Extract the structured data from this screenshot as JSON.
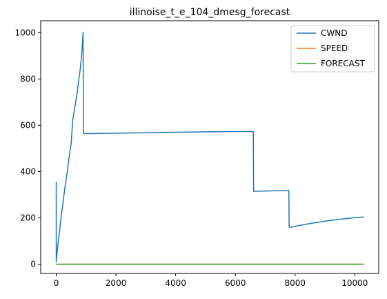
{
  "chart_data": {
    "type": "line",
    "title": "illinoise_t_e_104_dmesg_forecast",
    "xlabel": "",
    "ylabel": "",
    "xlim": [
      -520,
      10800
    ],
    "ylim": [
      -40,
      1052
    ],
    "x_ticks": [
      0,
      2000,
      4000,
      6000,
      8000,
      10000
    ],
    "y_ticks": [
      0,
      200,
      400,
      600,
      800,
      1000
    ],
    "grid": false,
    "legend_position": "upper right",
    "series": [
      {
        "name": "CWND",
        "color": "#1f77b4",
        "points": [
          [
            0,
            355
          ],
          [
            0,
            10
          ],
          [
            50,
            80
          ],
          [
            100,
            130
          ],
          [
            150,
            190
          ],
          [
            200,
            240
          ],
          [
            250,
            290
          ],
          [
            300,
            340
          ],
          [
            350,
            380
          ],
          [
            400,
            430
          ],
          [
            450,
            480
          ],
          [
            500,
            520
          ],
          [
            550,
            620
          ],
          [
            600,
            660
          ],
          [
            650,
            700
          ],
          [
            700,
            740
          ],
          [
            750,
            790
          ],
          [
            800,
            840
          ],
          [
            850,
            900
          ],
          [
            900,
            1002
          ],
          [
            910,
            564
          ],
          [
            1000,
            564
          ],
          [
            1500,
            565
          ],
          [
            2000,
            566
          ],
          [
            3000,
            568
          ],
          [
            4000,
            570
          ],
          [
            5000,
            572
          ],
          [
            6000,
            573
          ],
          [
            6600,
            573
          ],
          [
            6610,
            315
          ],
          [
            7000,
            316
          ],
          [
            7500,
            318
          ],
          [
            7790,
            318
          ],
          [
            7800,
            160
          ],
          [
            7900,
            160
          ],
          [
            8000,
            164
          ],
          [
            8500,
            176
          ],
          [
            9000,
            186
          ],
          [
            9500,
            194
          ],
          [
            10000,
            201
          ],
          [
            10300,
            204
          ]
        ]
      },
      {
        "name": "SPEED",
        "color": "#ff7f0e",
        "points": [
          [
            0,
            0
          ],
          [
            10300,
            0
          ]
        ]
      },
      {
        "name": "FORECAST",
        "color": "#2ca02c",
        "points": [
          [
            0,
            0
          ],
          [
            10300,
            0
          ]
        ]
      }
    ]
  }
}
